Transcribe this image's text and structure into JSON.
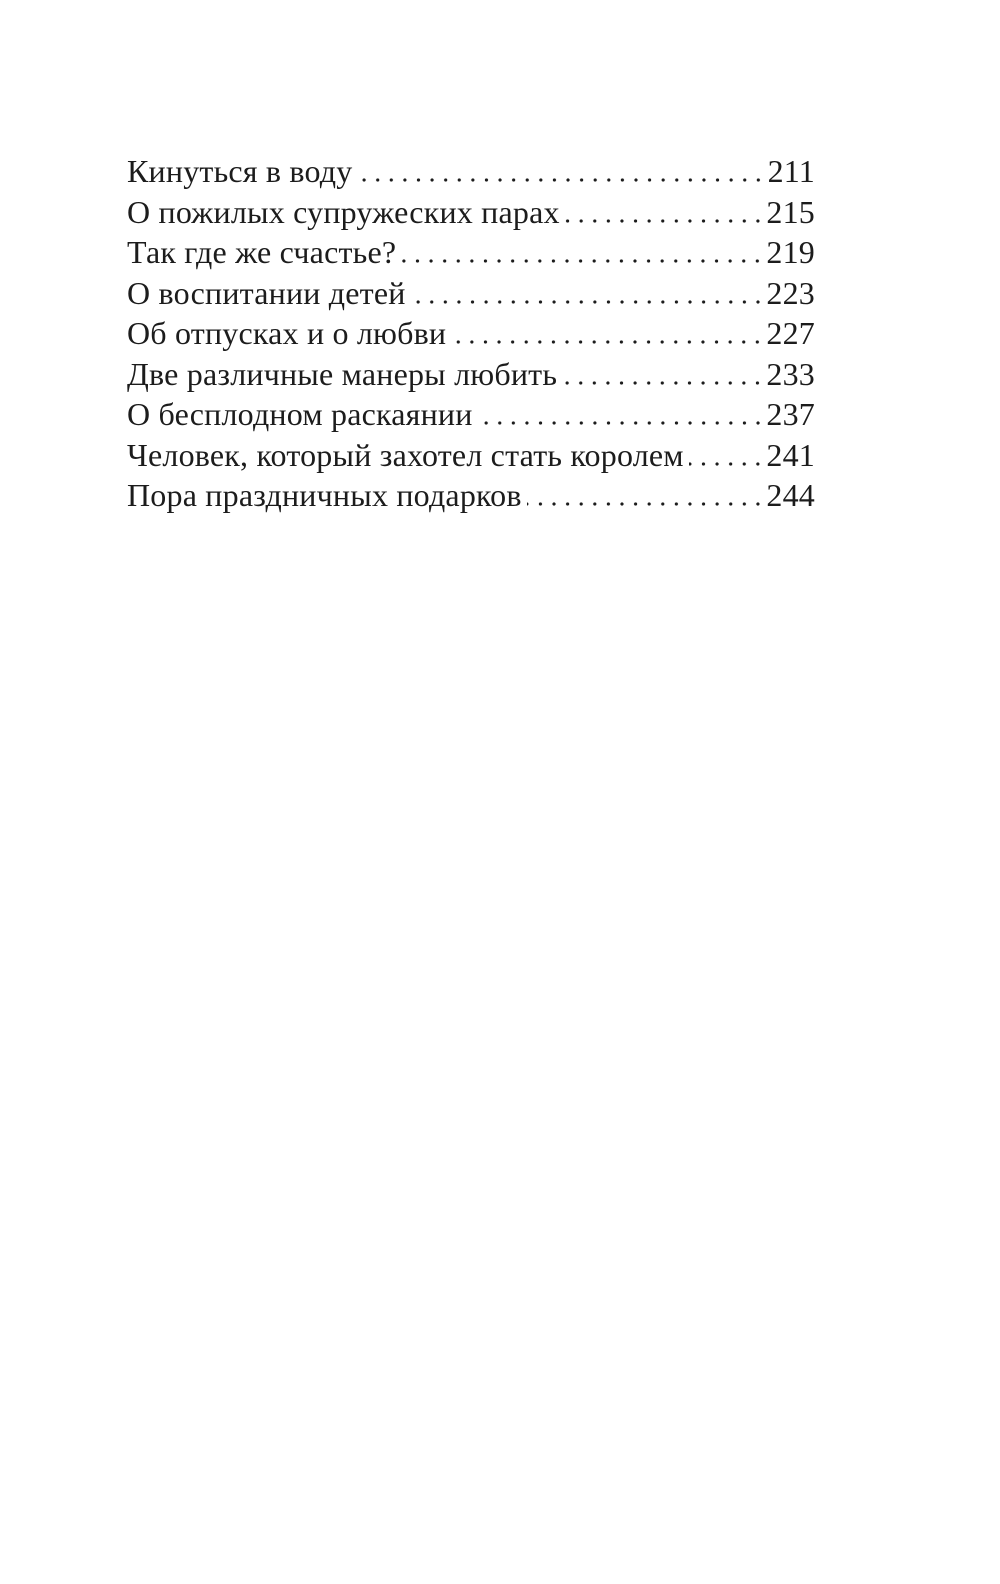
{
  "page": {
    "kind": "book-table-of-contents",
    "language": "ru",
    "colors": {
      "background": "#ffffff",
      "text": "#1c1c1c",
      "leader_dots": "#1c1c1c"
    }
  },
  "toc": {
    "entries": [
      {
        "title": "Кинуться в воду",
        "page": "211"
      },
      {
        "title": "О пожилых супружеских парах",
        "page": "215"
      },
      {
        "title": "Так где же счастье?",
        "page": "219"
      },
      {
        "title": "О воспитании детей",
        "page": "223"
      },
      {
        "title": "Об отпусках и о любви",
        "page": "227"
      },
      {
        "title": "Две различные манеры любить",
        "page": "233"
      },
      {
        "title": "О бесплодном раскаянии",
        "page": "237"
      },
      {
        "title": "Человек, который захотел стать королем",
        "page": "241"
      },
      {
        "title": "Пора праздничных подарков",
        "page": "244"
      }
    ]
  }
}
